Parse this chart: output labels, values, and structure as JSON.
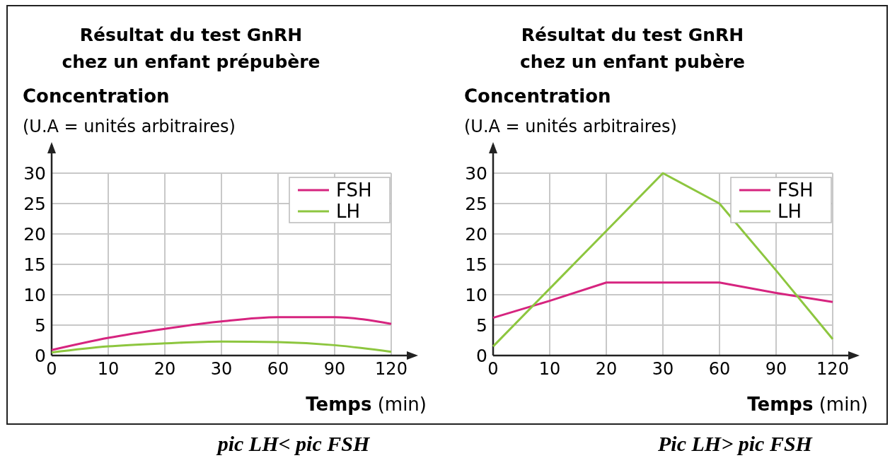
{
  "chart_data": [
    {
      "type": "line",
      "title": "Résultat du test GnRH\nchez un enfant prépubère",
      "ylabel": "Concentration\n(U.A = unités arbitraires)",
      "xlabel": "Temps (min)",
      "categories": [
        "0",
        "10",
        "20",
        "30",
        "60",
        "90",
        "120"
      ],
      "ylim": [
        0,
        30
      ],
      "yticks": [
        0,
        5,
        10,
        15,
        20,
        25,
        30
      ],
      "grid": true,
      "legend": "top right",
      "marker": "none",
      "line_style": "solid",
      "annotations": [
        "pic LH< pic FSH"
      ],
      "series": [
        {
          "name": "FSH",
          "color": "#d6247f",
          "values": [
            0.9,
            2.9,
            4.4,
            5.6,
            6.3,
            6.3,
            5.2
          ]
        },
        {
          "name": "LH",
          "color": "#8dc63f",
          "values": [
            0.5,
            1.5,
            2.0,
            2.3,
            2.2,
            1.7,
            0.6
          ]
        }
      ]
    },
    {
      "type": "line",
      "title": "Résultat du test GnRH\nchez un enfant pubère",
      "ylabel": "Concentration\n(U.A = unités arbitraires)",
      "xlabel": "Temps (min)",
      "categories": [
        "0",
        "10",
        "20",
        "30",
        "60",
        "90",
        "120"
      ],
      "ylim": [
        0,
        30
      ],
      "yticks": [
        0,
        5,
        10,
        15,
        20,
        25,
        30
      ],
      "grid": true,
      "legend": "top right",
      "marker": "none",
      "line_style": "solid",
      "annotations": [
        "Pic LH> pic FSH"
      ],
      "series": [
        {
          "name": "FSH",
          "color": "#d6247f",
          "values": [
            6.2,
            9,
            12,
            12,
            12,
            10.3,
            8.8
          ]
        },
        {
          "name": "LH",
          "color": "#8dc63f",
          "values": [
            1.5,
            11,
            20.5,
            30,
            25,
            14,
            2.7
          ]
        }
      ]
    }
  ]
}
